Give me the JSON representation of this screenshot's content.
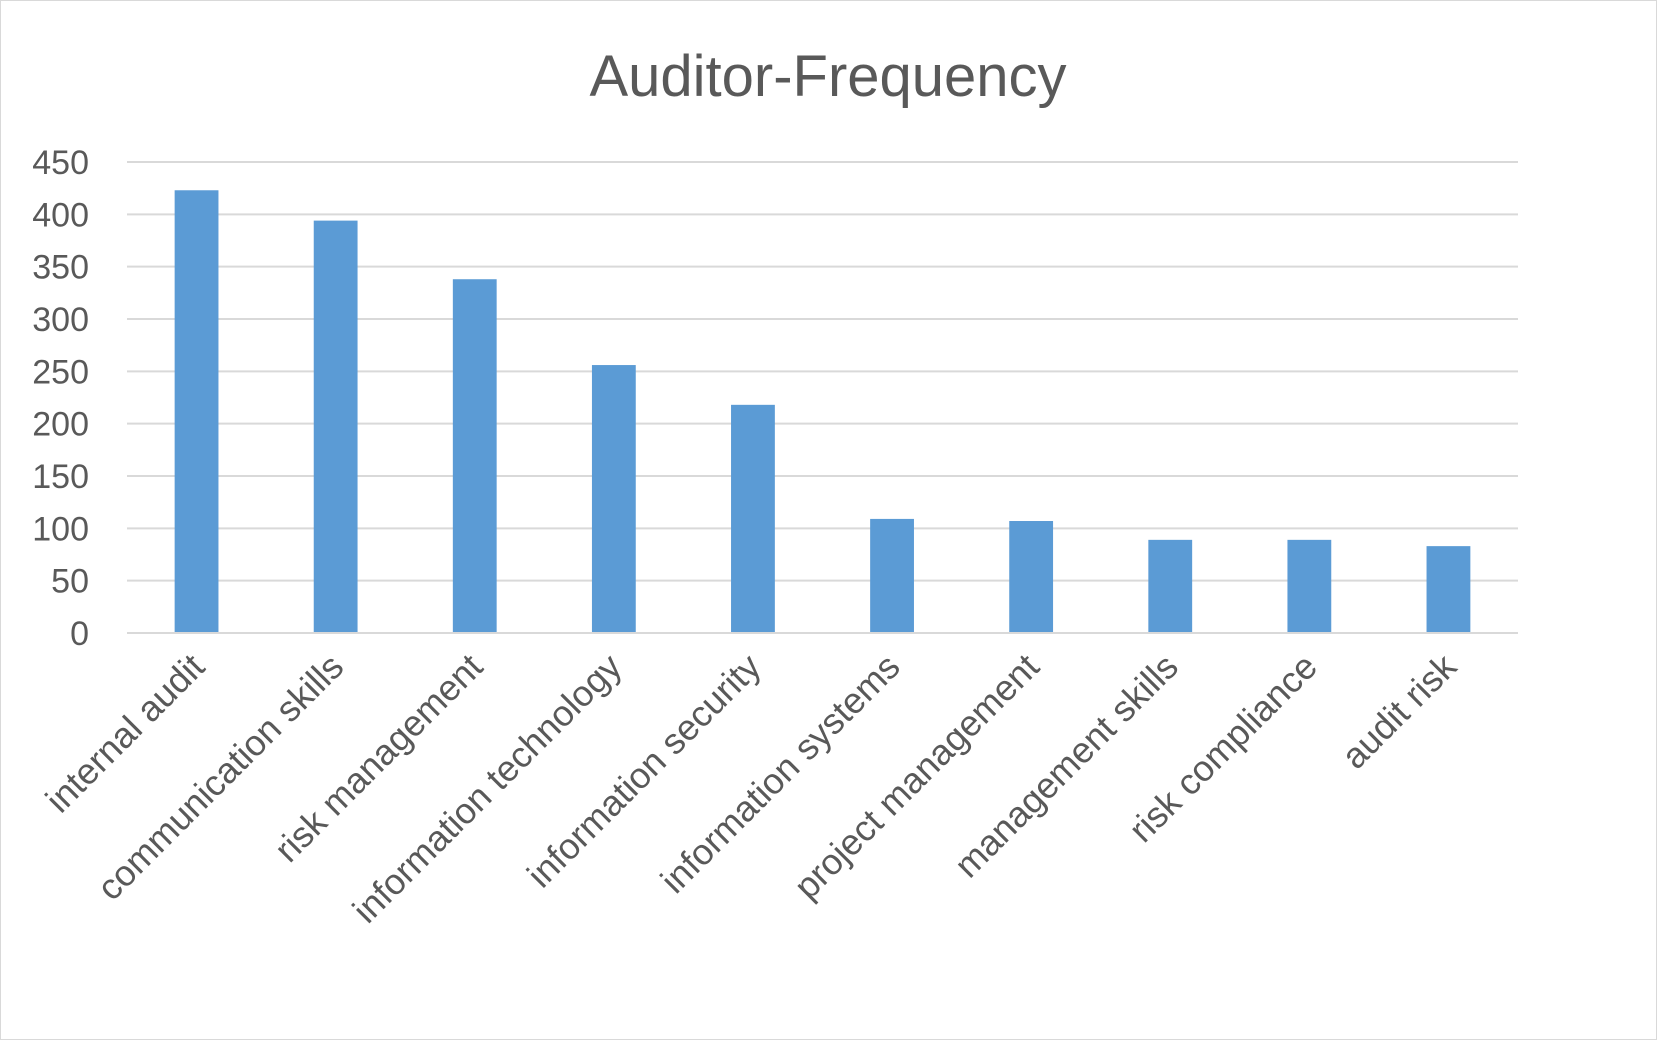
{
  "chart_data": {
    "type": "bar",
    "title": "Auditor-Frequency",
    "xlabel": "",
    "ylabel": "",
    "categories": [
      "internal audit",
      "communication skills",
      "risk management",
      "information technology",
      "information security",
      "information systems",
      "project management",
      "management skills",
      "risk compliance",
      "audit risk"
    ],
    "values": [
      423,
      394,
      338,
      256,
      218,
      109,
      107,
      89,
      89,
      83
    ],
    "ylim": [
      0,
      450
    ],
    "yticks": [
      "0",
      "50",
      "100",
      "150",
      "200",
      "250",
      "300",
      "350",
      "400",
      "450"
    ],
    "grid": true,
    "legend": "none",
    "bar_color": "#5b9bd5"
  }
}
